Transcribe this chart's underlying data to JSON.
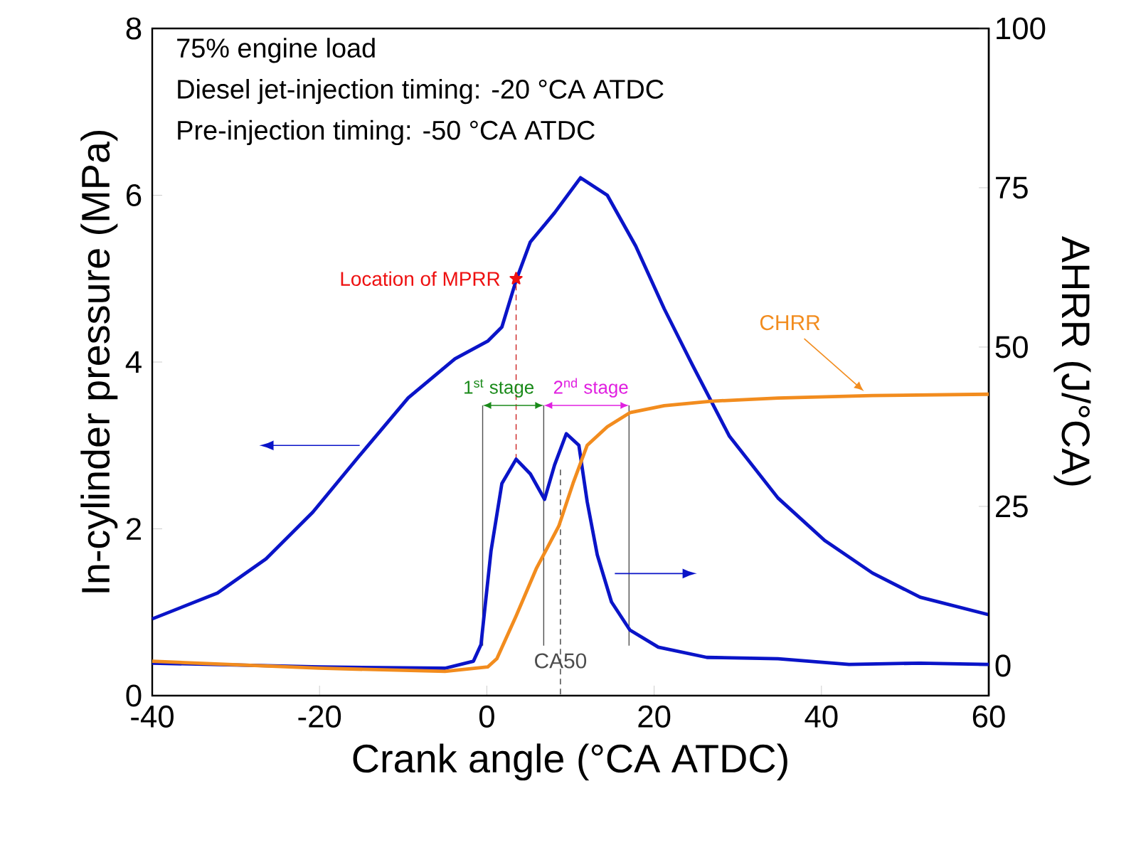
{
  "chart_data": {
    "type": "line",
    "xlabel": "Crank angle (°CA ATDC)",
    "ylabel": "In-cylinder pressure (MPa)",
    "y2label": "AHRR (J/°CA)",
    "annotations": [
      "75% engine load",
      "Diesel jet-injection timing: -20 °CA ATDC",
      "Pre-injection timing: -50 °CA ATDC",
      {
        "text": "CA50",
        "x": 8.8,
        "y": 0.3
      },
      {
        "text": "1$^{st}$ stage",
        "x": -0.5,
        "y": 3.48
      },
      {
        "text": "2$^{nd}$ stage",
        "x": 6.8,
        "y": 3.48
      }
    ],
    "xlim": [
      -40,
      60
    ],
    "xticks": [
      -40,
      -20,
      0,
      20,
      40,
      60
    ],
    "ylim": [
      0,
      8
    ],
    "yticks": [
      0,
      2,
      4,
      6,
      8
    ],
    "y2lim": [
      -4.7,
      100
    ],
    "y2ticks": [
      0,
      25,
      50,
      75,
      100
    ],
    "marker": "none",
    "series": [
      {
        "axis": "y",
        "color": "#0a14c8",
        "line_style": "solid",
        "x": [
          -40,
          -32.2,
          -26.4,
          -20.8,
          -15.2,
          -9.4,
          -3.8,
          0.1,
          1.8,
          3.5,
          5.2,
          8.1,
          11.2,
          11.5,
          14.4,
          17.8,
          21.2,
          24.6,
          29.0,
          34.8,
          40.4,
          46.1,
          51.8,
          60
        ],
        "values": [
          0.92,
          1.23,
          1.64,
          2.2,
          2.88,
          3.57,
          4.04,
          4.25,
          4.42,
          4.98,
          5.44,
          5.79,
          6.21,
          6.19,
          6.0,
          5.39,
          4.64,
          3.96,
          3.11,
          2.37,
          1.86,
          1.47,
          1.18,
          0.97
        ]
      },
      {
        "axis": "y2",
        "color": "#0a14c8",
        "line_style": "solid",
        "x": [
          -40,
          -20,
          -5,
          -1.6,
          -0.7,
          0.5,
          1.8,
          3.5,
          5.2,
          6.9,
          8.1,
          9.5,
          11.0,
          12.0,
          13.2,
          14.9,
          17.1,
          20.5,
          26.3,
          34.8,
          43.3,
          51.8,
          60
        ],
        "values": [
          0.4,
          -0.2,
          -0.4,
          0.7,
          3.3,
          18,
          28.6,
          32.4,
          30.1,
          26.1,
          31.5,
          36.4,
          34.6,
          25.7,
          17.4,
          10.0,
          5.6,
          2.9,
          1.3,
          1.1,
          0.2,
          0.4,
          0.2
        ]
      },
      {
        "axis": "y2",
        "name": "CHRR",
        "color": "#f28c1e",
        "line_style": "solid",
        "x": [
          -40,
          -20,
          -5,
          0.1,
          1.2,
          3.5,
          5.9,
          8.6,
          10.3,
          12.0,
          14.4,
          17.1,
          21.2,
          26.8,
          34.8,
          46.1,
          60
        ],
        "values": [
          0.7,
          -0.4,
          -0.9,
          -0.2,
          1.1,
          7.8,
          15.2,
          21.9,
          28.6,
          34.6,
          37.5,
          39.7,
          40.8,
          41.5,
          42.0,
          42.4,
          42.6
        ]
      },
      {
        "type": "scatter",
        "axis": "y",
        "name": "Location of MPRR",
        "color": "#ee1111",
        "marker": "star",
        "x": [
          3.5
        ],
        "values": [
          5
        ]
      },
      {
        "axis": "y",
        "color": "#cc2222",
        "line_style": "dashed",
        "x": [
          3.5,
          3.5
        ],
        "values": [
          2.83,
          5
        ]
      },
      {
        "axis": "y",
        "color": "#404040",
        "line_style": "dashed",
        "x": [
          8.8,
          8.8
        ],
        "values": [
          2.71,
          0
        ]
      },
      {
        "axis": "y",
        "color": "#505050",
        "line_style": "solid",
        "x": [
          -0.5,
          -0.5
        ],
        "values": [
          0.6,
          3.48
        ]
      },
      {
        "axis": "y",
        "color": "#505050",
        "line_style": "solid",
        "x": [
          6.8,
          6.8
        ],
        "values": [
          0.6,
          3.48
        ]
      },
      {
        "axis": "y",
        "color": "#505050",
        "line_style": "solid",
        "x": [
          17.0,
          17.0
        ],
        "values": [
          0.6,
          3.48
        ]
      }
    ]
  }
}
